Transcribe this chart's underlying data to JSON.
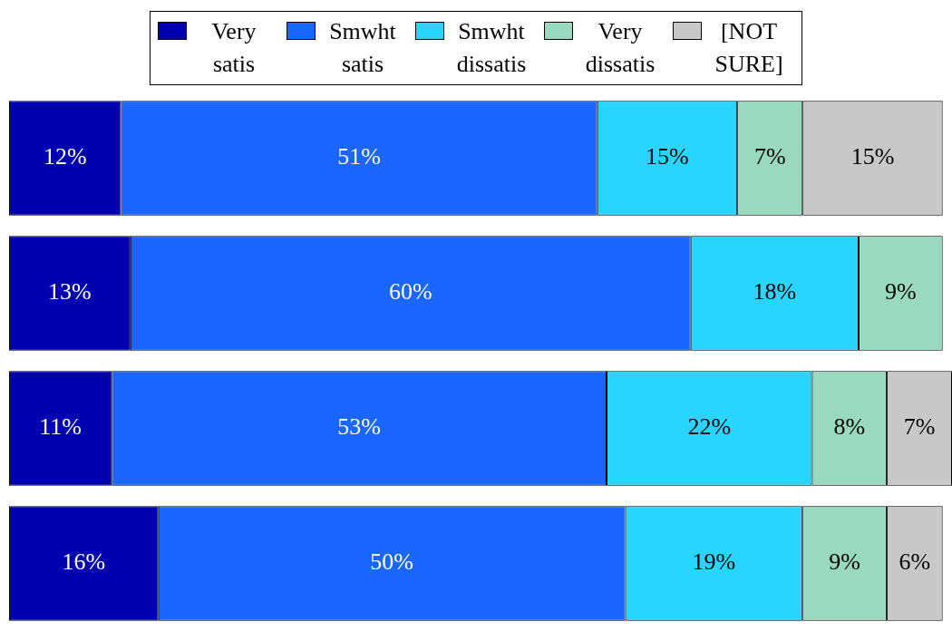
{
  "chart_data": {
    "type": "bar",
    "orientation": "horizontal",
    "stacked": true,
    "legend": "top",
    "categories": [
      null,
      null,
      null,
      null
    ],
    "series": [
      {
        "name": "Very satis",
        "color": "#0000b0",
        "values": [
          12,
          13,
          11,
          16
        ],
        "value_labels": [
          "12%",
          "13%",
          "11%",
          "16%"
        ]
      },
      {
        "name": "Smwht satis",
        "color": "#1a66ff",
        "values": [
          51,
          60,
          53,
          50
        ],
        "value_labels": [
          "51%",
          "60%",
          "53%",
          "50%"
        ]
      },
      {
        "name": "Smwht dissatis",
        "color": "#29d4ff",
        "values": [
          15,
          18,
          22,
          19
        ],
        "value_labels": [
          "15%",
          "18%",
          "22%",
          "19%"
        ]
      },
      {
        "name": "Very dissatis",
        "color": "#99d9c0",
        "values": [
          7,
          9,
          8,
          9
        ],
        "value_labels": [
          "7%",
          "9%",
          "8%",
          "9%"
        ]
      },
      {
        "name": "[NOT SURE]",
        "color": "#c8c8c8",
        "values": [
          15,
          null,
          7,
          6
        ],
        "value_labels": [
          "15%",
          null,
          "7%",
          "6%"
        ]
      }
    ]
  }
}
